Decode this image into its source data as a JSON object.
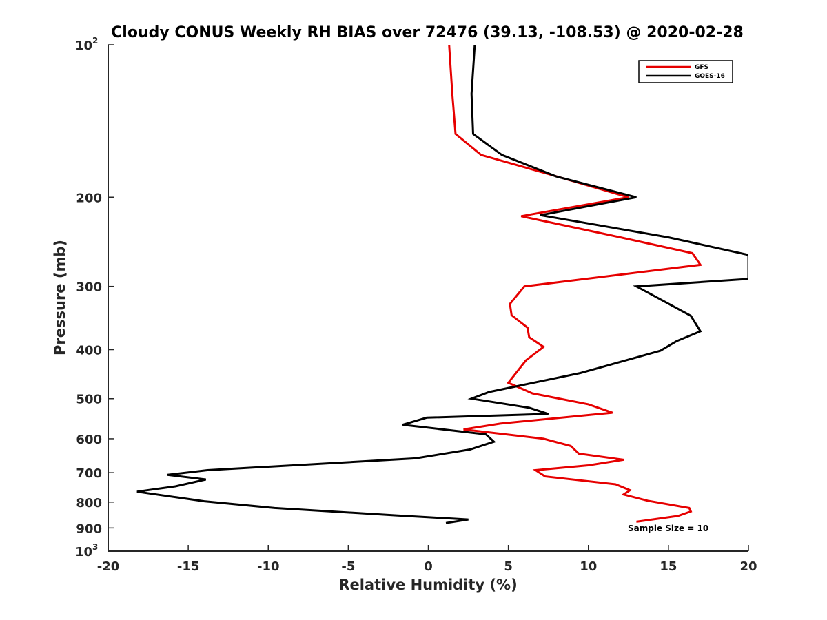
{
  "chart_data": {
    "type": "line",
    "title": "Cloudy CONUS Weekly RH BIAS over 72476 (39.13, -108.53) @ 2020-02-28",
    "xlabel": "Relative Humidity (%)",
    "ylabel": "Pressure (mb)",
    "xlim": [
      -20,
      20
    ],
    "ylim": [
      100,
      1000
    ],
    "y_scale": "log",
    "y_reversed": true,
    "x_ticks": [
      -20,
      -15,
      -10,
      -5,
      0,
      5,
      10,
      15,
      20
    ],
    "x_tick_labels": [
      "-20",
      "-15",
      "-10",
      "-5",
      "0",
      "5",
      "10",
      "15",
      "20"
    ],
    "y_ticks": [
      {
        "value": 100,
        "base": "10",
        "exp": "2"
      },
      {
        "value": 200,
        "label": "200"
      },
      {
        "value": 300,
        "label": "300"
      },
      {
        "value": 400,
        "label": "400"
      },
      {
        "value": 500,
        "label": "500"
      },
      {
        "value": 600,
        "label": "600"
      },
      {
        "value": 700,
        "label": "700"
      },
      {
        "value": 800,
        "label": "800"
      },
      {
        "value": 900,
        "label": "900"
      },
      {
        "value": 1000,
        "base": "10",
        "exp": "3"
      }
    ],
    "grid": false,
    "legend_position": "top-right",
    "annotation": "Sample Size = 10",
    "series": [
      {
        "name": "GFS",
        "color": "#e60000",
        "x": [
          1.3,
          1.5,
          1.7,
          3.3,
          7.5,
          12.5,
          5.8,
          12.0,
          16.5,
          17.0,
          6.0,
          5.1,
          5.2,
          6.2,
          6.3,
          7.2,
          6.1,
          5.0,
          6.5,
          10.0,
          11.5,
          4.5,
          2.2,
          7.2,
          8.9,
          9.4,
          12.2,
          10.0,
          6.7,
          7.3,
          11.7,
          12.6,
          12.2,
          13.7,
          16.3,
          16.4,
          15.6,
          13.0
        ],
        "y": [
          100,
          125,
          150,
          165,
          180,
          200,
          218,
          240,
          258,
          272,
          300,
          325,
          342,
          362,
          378,
          395,
          420,
          465,
          488,
          513,
          533,
          560,
          575,
          600,
          620,
          642,
          660,
          677,
          692,
          712,
          738,
          758,
          773,
          795,
          822,
          835,
          852,
          875
        ]
      },
      {
        "name": "GOES-16",
        "color": "#000000",
        "x": [
          2.9,
          2.7,
          2.8,
          4.6,
          8.0,
          13.0,
          7.0,
          15.0,
          20.0,
          20.0,
          13.0,
          16.4,
          17.0,
          15.5,
          14.5,
          9.5,
          3.8,
          2.7,
          6.3,
          7.5,
          -0.1,
          -1.6,
          3.6,
          4.1,
          2.6,
          -0.8,
          -13.8,
          -16.3,
          -13.9,
          -15.8,
          -18.2,
          -14.0,
          -9.6,
          -2.0,
          2.5,
          1.1
        ],
        "y": [
          100,
          125,
          150,
          165,
          182,
          200,
          217,
          240,
          260,
          290,
          300,
          343,
          368,
          385,
          402,
          445,
          485,
          500,
          521,
          536,
          545,
          563,
          588,
          608,
          630,
          656,
          692,
          707,
          722,
          745,
          763,
          797,
          822,
          850,
          866,
          880
        ]
      }
    ]
  }
}
